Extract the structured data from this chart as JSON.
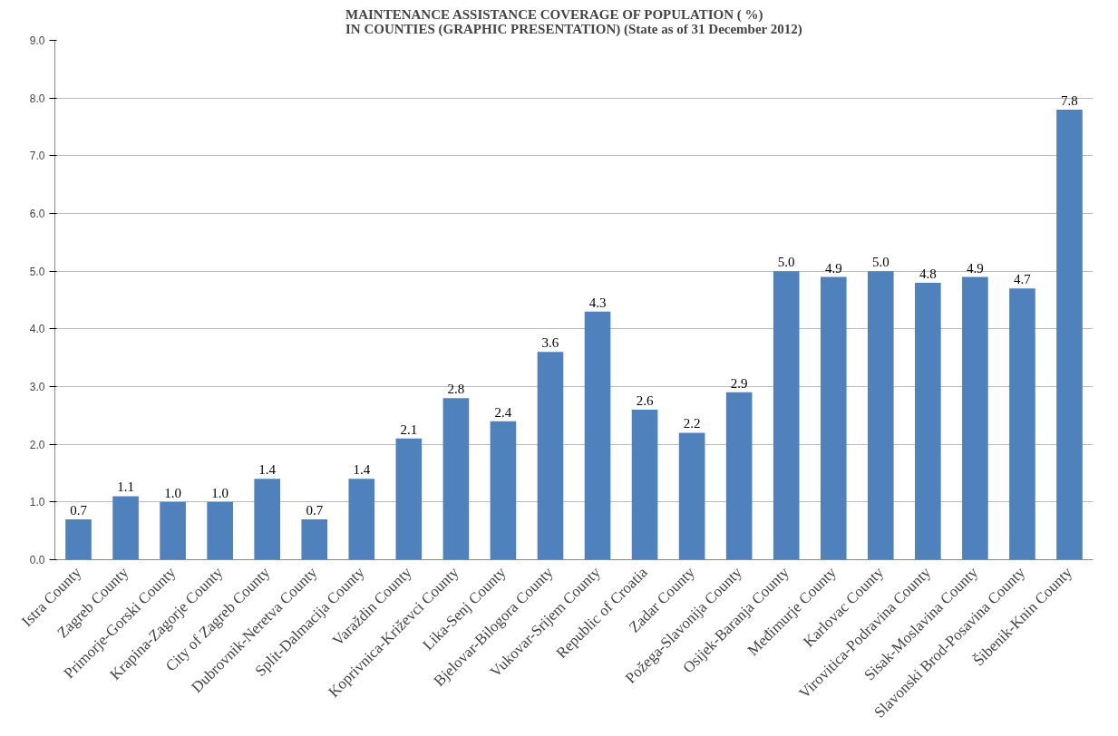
{
  "chart_data": {
    "type": "bar",
    "title": "MAINTENANCE ASSISTANCE COVERAGE OF POPULATION ( %)\nIN COUNTIES (GRAPHIC PRESENTATION) (State as of 31 December 2012)",
    "categories": [
      "Istra County",
      "Zagreb County",
      "Primorje-Gorski County",
      "Krapina-Zagorje County",
      "City of Zagreb County",
      "Dubrovnik-Neretva County",
      "Split-Dalmacija County",
      "Varaždin County",
      "Koprivnica-Križevci County",
      "Lika-Senj County",
      "Bjelovar-Bilogora County",
      "Vukovar-Srijem County",
      "Republic of Croatia",
      "Zadar County",
      "Požega-Slavonija County",
      "Osijek-Baranja County",
      "Međimurje County",
      "Karlovac County",
      "Virovitica-Podravina County",
      "Sisak-Moslavina County",
      "Slavonski Brod-Posavina County",
      "Šibenik-Knin County"
    ],
    "values": [
      0.7,
      1.1,
      1.0,
      1.0,
      1.4,
      0.7,
      1.4,
      2.1,
      2.8,
      2.4,
      3.6,
      4.3,
      2.6,
      2.2,
      2.9,
      5.0,
      4.9,
      5.0,
      4.8,
      4.9,
      4.7,
      7.8
    ],
    "color": "#4f81bd",
    "ylim": [
      0,
      9
    ],
    "yticks": [
      {
        "value": 0,
        "label": "0.0"
      },
      {
        "value": 1,
        "label": "1.0"
      },
      {
        "value": 2,
        "label": "2.0"
      },
      {
        "value": 3,
        "label": "3.0"
      },
      {
        "value": 4,
        "label": "4.0"
      },
      {
        "value": 5,
        "label": "5.0"
      },
      {
        "value": 6,
        "label": "6.0"
      },
      {
        "value": 7,
        "label": "7.0"
      },
      {
        "value": 8,
        "label": "8.0"
      },
      {
        "value": 9,
        "label": "9.0"
      }
    ],
    "grid": "y",
    "value_labels": [
      "0.7",
      "1.1",
      "1.0",
      "1.0",
      "1.4",
      "0.7",
      "1.4",
      "2.1",
      "2.8",
      "2.4",
      "3.6",
      "4.3",
      "2.6",
      "2.2",
      "2.9",
      "5.0",
      "4.9",
      "5.0",
      "4.8",
      "4.9",
      "4.7",
      "7.8"
    ]
  }
}
